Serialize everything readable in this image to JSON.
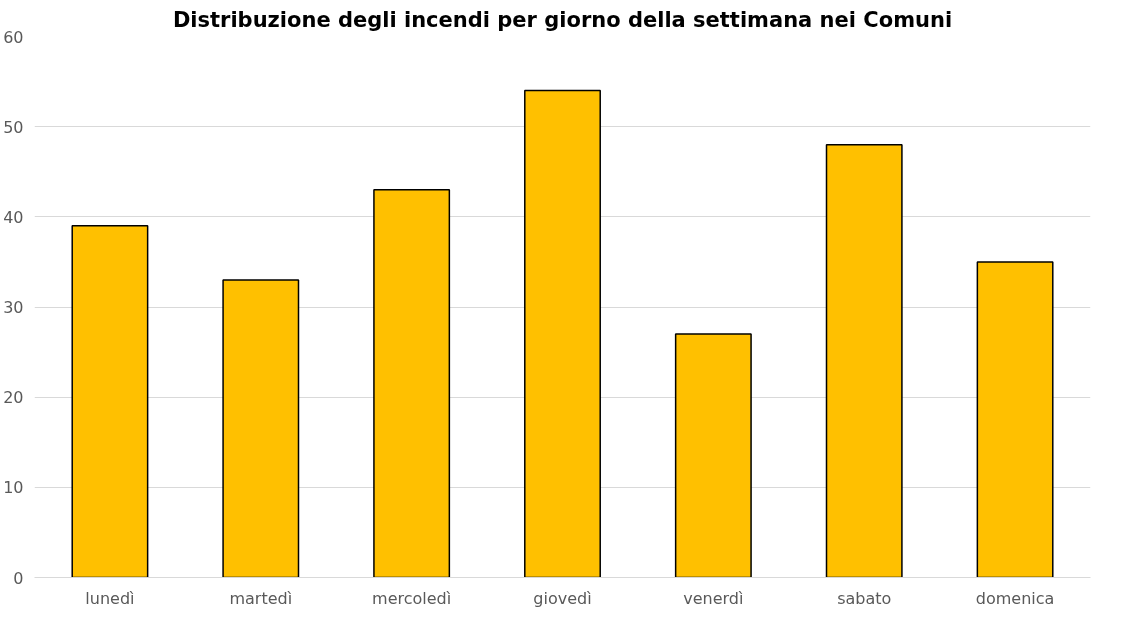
{
  "chart_data": {
    "type": "bar",
    "title": "Distribuzione degli incendi per giorno della settimana nei Comuni",
    "categories": [
      "lunedì",
      "martedì",
      "mercoledì",
      "giovedì",
      "venerdì",
      "sabato",
      "domenica"
    ],
    "values": [
      39,
      33,
      43,
      54,
      27,
      48,
      35
    ],
    "color": "#ffc000",
    "ylim": [
      0,
      60
    ],
    "yticks": [
      0,
      10,
      20,
      30,
      40,
      50,
      60
    ],
    "grid": "y"
  }
}
